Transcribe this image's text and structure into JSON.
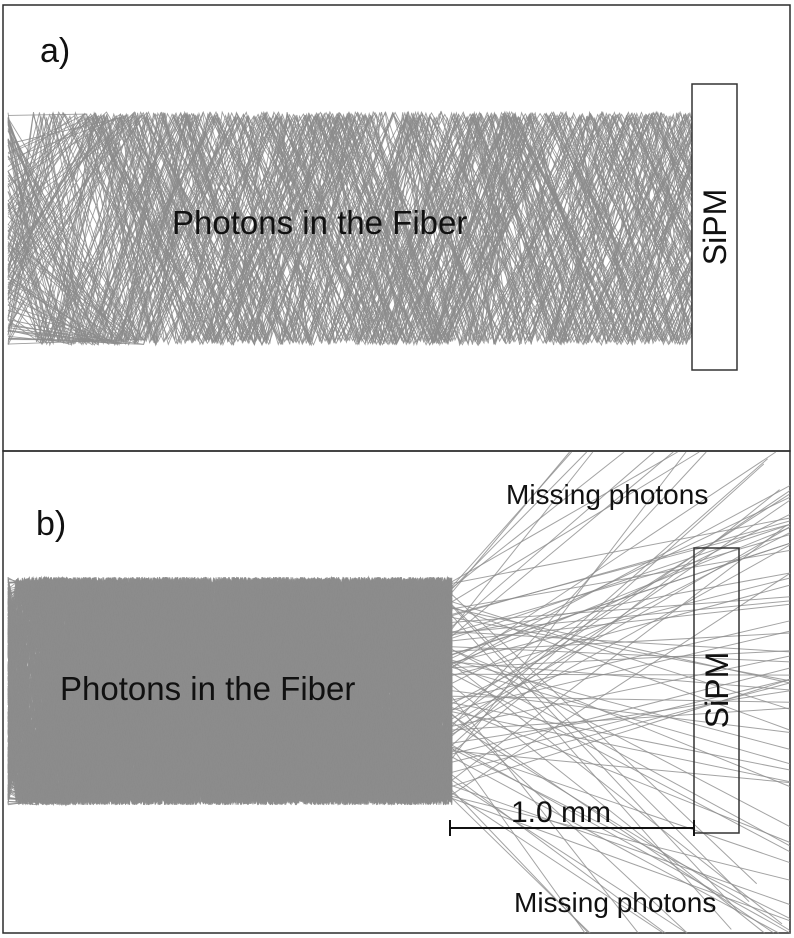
{
  "panel_a": {
    "label": "a)",
    "fiber_label": "Photons in the Fiber",
    "detector_label": "SiPM"
  },
  "panel_b": {
    "label": "b)",
    "fiber_label": "Photons in the Fiber",
    "detector_label": "SiPM",
    "missing_top_label": "Missing photons",
    "missing_bottom_label": "Missing photons",
    "scale_bar_label": "1.0 mm"
  },
  "colors": {
    "photon_track": "#8c8c8c",
    "frame": "#2b2b2b",
    "text": "#111111"
  }
}
